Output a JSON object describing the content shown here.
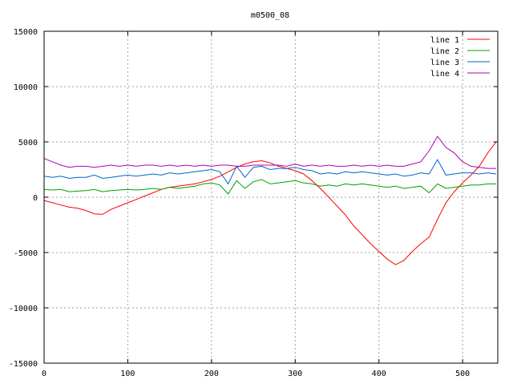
{
  "chart_data": {
    "type": "line",
    "title": "m0500_08",
    "xlabel": "",
    "ylabel": "",
    "xlim": [
      0,
      542
    ],
    "ylim": [
      -15000,
      15000
    ],
    "x_ticks": [
      0,
      100,
      200,
      300,
      400,
      500
    ],
    "y_ticks": [
      -15000,
      -10000,
      -5000,
      0,
      5000,
      10000,
      15000
    ],
    "x_tick_labels": [
      "0",
      "100",
      "200",
      "300",
      "400",
      "500"
    ],
    "y_tick_labels": [
      "-15000",
      "-10000",
      "-5000",
      "0",
      "5000",
      "10000",
      "15000"
    ],
    "grid": true,
    "legend_position": "top-right",
    "series": [
      {
        "name": "line 1",
        "color": "#ff0000",
        "x": [
          0,
          10,
          20,
          30,
          40,
          50,
          60,
          70,
          80,
          90,
          100,
          110,
          120,
          130,
          140,
          150,
          160,
          170,
          180,
          190,
          200,
          210,
          220,
          230,
          240,
          250,
          260,
          270,
          280,
          290,
          300,
          310,
          320,
          330,
          340,
          350,
          360,
          370,
          380,
          390,
          400,
          410,
          420,
          430,
          440,
          450,
          460,
          470,
          480,
          490,
          500,
          510,
          520,
          530,
          540
        ],
        "values": [
          -300,
          -500,
          -700,
          -900,
          -1000,
          -1200,
          -1500,
          -1550,
          -1100,
          -800,
          -500,
          -200,
          100,
          400,
          700,
          900,
          1000,
          1100,
          1200,
          1400,
          1600,
          1900,
          2300,
          2700,
          3000,
          3200,
          3300,
          3100,
          2800,
          2600,
          2400,
          2100,
          1500,
          800,
          0,
          -800,
          -1600,
          -2600,
          -3400,
          -4200,
          -4900,
          -5600,
          -6100,
          -5700,
          -4900,
          -4200,
          -3600,
          -2000,
          -500,
          500,
          1300,
          2000,
          2800,
          4000,
          5000
        ]
      },
      {
        "name": "line 2",
        "color": "#00a000",
        "x": [
          0,
          10,
          20,
          30,
          40,
          50,
          60,
          70,
          80,
          90,
          100,
          110,
          120,
          130,
          140,
          150,
          160,
          170,
          180,
          190,
          200,
          210,
          220,
          230,
          240,
          250,
          260,
          270,
          280,
          290,
          300,
          310,
          320,
          330,
          340,
          350,
          360,
          370,
          380,
          390,
          400,
          410,
          420,
          430,
          440,
          450,
          460,
          470,
          480,
          490,
          500,
          510,
          520,
          530,
          540
        ],
        "values": [
          700,
          650,
          700,
          500,
          550,
          600,
          700,
          500,
          600,
          650,
          700,
          650,
          700,
          800,
          700,
          900,
          800,
          900,
          1000,
          1200,
          1300,
          1100,
          300,
          1500,
          800,
          1400,
          1600,
          1200,
          1300,
          1400,
          1500,
          1300,
          1200,
          1000,
          1100,
          1000,
          1200,
          1100,
          1200,
          1100,
          1000,
          900,
          1000,
          800,
          900,
          1000,
          400,
          1200,
          800,
          900,
          1000,
          1100,
          1100,
          1200,
          1200
        ]
      },
      {
        "name": "line 3",
        "color": "#0066cc",
        "x": [
          0,
          10,
          20,
          30,
          40,
          50,
          60,
          70,
          80,
          90,
          100,
          110,
          120,
          130,
          140,
          150,
          160,
          170,
          180,
          190,
          200,
          210,
          220,
          230,
          240,
          250,
          260,
          270,
          280,
          290,
          300,
          310,
          320,
          330,
          340,
          350,
          360,
          370,
          380,
          390,
          400,
          410,
          420,
          430,
          440,
          450,
          460,
          470,
          480,
          490,
          500,
          510,
          520,
          530,
          540
        ],
        "values": [
          1900,
          1800,
          1900,
          1700,
          1800,
          1800,
          2000,
          1700,
          1800,
          1900,
          2000,
          1900,
          2000,
          2100,
          2000,
          2200,
          2100,
          2200,
          2300,
          2400,
          2500,
          2300,
          1200,
          2800,
          1800,
          2700,
          2800,
          2500,
          2600,
          2600,
          2700,
          2500,
          2400,
          2100,
          2200,
          2100,
          2300,
          2200,
          2300,
          2200,
          2100,
          2000,
          2100,
          1900,
          2000,
          2200,
          2100,
          3400,
          2000,
          2100,
          2200,
          2200,
          2100,
          2200,
          2100
        ]
      },
      {
        "name": "line 4",
        "color": "#b000b0",
        "x": [
          0,
          10,
          20,
          30,
          40,
          50,
          60,
          70,
          80,
          90,
          100,
          110,
          120,
          130,
          140,
          150,
          160,
          170,
          180,
          190,
          200,
          210,
          220,
          230,
          240,
          250,
          260,
          270,
          280,
          290,
          300,
          310,
          320,
          330,
          340,
          350,
          360,
          370,
          380,
          390,
          400,
          410,
          420,
          430,
          440,
          450,
          460,
          470,
          480,
          490,
          500,
          510,
          520,
          530,
          540
        ],
        "values": [
          3500,
          3200,
          2900,
          2700,
          2800,
          2800,
          2700,
          2800,
          2900,
          2800,
          2900,
          2800,
          2900,
          2900,
          2800,
          2900,
          2800,
          2900,
          2800,
          2900,
          2800,
          2900,
          2900,
          2800,
          2800,
          2900,
          2900,
          2900,
          2900,
          2800,
          3000,
          2800,
          2900,
          2800,
          2900,
          2800,
          2800,
          2900,
          2800,
          2900,
          2800,
          2900,
          2800,
          2800,
          3000,
          3200,
          4200,
          5500,
          4500,
          4000,
          3200,
          2800,
          2700,
          2600,
          2600
        ]
      }
    ]
  }
}
